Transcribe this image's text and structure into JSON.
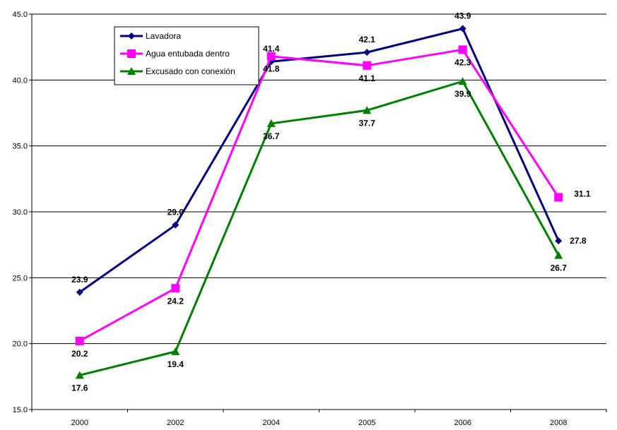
{
  "chart_data": {
    "type": "line",
    "categories": [
      "2000",
      "2002",
      "2004",
      "2005",
      "2006",
      "2008"
    ],
    "series": [
      {
        "name": "Lavadora",
        "color": "#000080",
        "marker": "diamond",
        "values": [
          23.9,
          29.0,
          41.4,
          42.1,
          43.9,
          27.8
        ],
        "labels": [
          "23.9",
          "29.0",
          "41.4",
          "42.1",
          "43.9",
          "27.8"
        ]
      },
      {
        "name": "Agua entubada dentro",
        "color": "#ff00ff",
        "marker": "square",
        "values": [
          20.2,
          24.2,
          41.8,
          41.1,
          42.3,
          31.1
        ],
        "labels": [
          "20.2",
          "24.2",
          "41.8",
          "41.1",
          "42.3",
          "31.1"
        ]
      },
      {
        "name": "Excusado con conexión",
        "color": "#008000",
        "marker": "triangle",
        "values": [
          17.6,
          19.4,
          36.7,
          37.7,
          39.9,
          26.7
        ],
        "labels": [
          "17.6",
          "19.4",
          "36.7",
          "37.7",
          "39.9",
          "26.7"
        ]
      }
    ],
    "yticks": [
      "15.0",
      "20.0",
      "25.0",
      "30.0",
      "35.0",
      "40.0",
      "45.0"
    ],
    "ylim": [
      15,
      45
    ],
    "grid": true,
    "legend_position": "top-left"
  }
}
